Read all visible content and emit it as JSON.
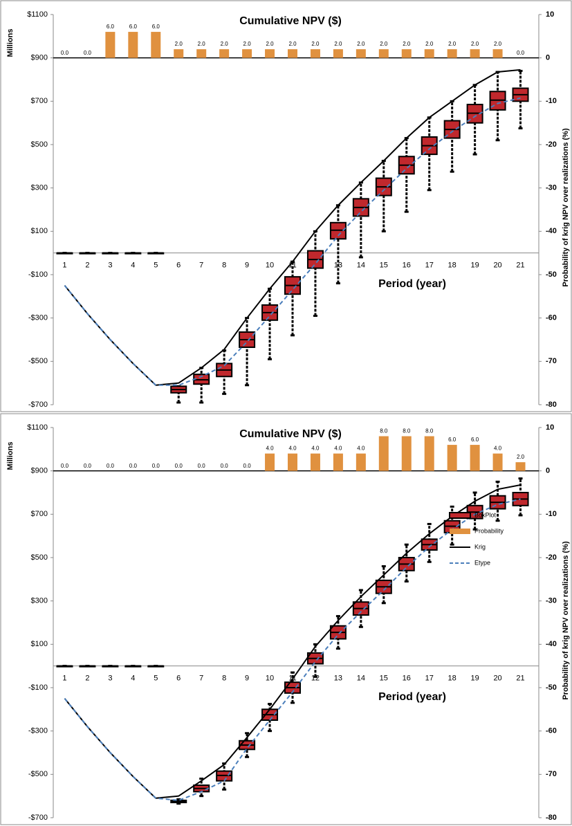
{
  "chart_data": [
    {
      "type": "boxplot",
      "title": "Cumulative NPV ($)",
      "x_label": "Period (year)",
      "y_label": "Millions",
      "y2_label": "Probability  of krig NPV over realizations  (%)",
      "categories": [
        "1",
        "2",
        "3",
        "4",
        "5",
        "6",
        "7",
        "8",
        "9",
        "10",
        "11",
        "12",
        "13",
        "14",
        "15",
        "16",
        "17",
        "18",
        "19",
        "20",
        "21"
      ],
      "ylim": [
        -700,
        1100
      ],
      "yticks": [
        {
          "value": 1100,
          "label": "$1100"
        },
        {
          "value": 900,
          "label": "$900"
        },
        {
          "value": 700,
          "label": "$700"
        },
        {
          "value": 500,
          "label": "$500"
        },
        {
          "value": 300,
          "label": "$300"
        },
        {
          "value": 100,
          "label": "$100"
        },
        {
          "value": -100,
          "label": "-$100"
        },
        {
          "value": -300,
          "label": "-$300"
        },
        {
          "value": -500,
          "label": "-$500"
        },
        {
          "value": -700,
          "label": "-$700"
        }
      ],
      "y2lim": [
        -80,
        10
      ],
      "y2ticks": [
        10,
        0,
        -10,
        -20,
        -30,
        -40,
        -50,
        -60,
        -70,
        -80
      ],
      "series": [
        {
          "type": "boxplot",
          "color": "#c0282d",
          "min": [
            0,
            0,
            0,
            0,
            0,
            -690,
            -690,
            -650,
            -610,
            -490,
            -380,
            -290,
            -140,
            -20,
            100,
            190,
            290,
            375,
            455,
            520,
            575
          ],
          "q1": [
            0,
            0,
            0,
            0,
            0,
            -645,
            -605,
            -570,
            -435,
            -310,
            -190,
            -70,
            65,
            170,
            265,
            365,
            455,
            530,
            600,
            660,
            700
          ],
          "median": [
            0,
            0,
            0,
            0,
            0,
            -630,
            -585,
            -540,
            -400,
            -275,
            -150,
            -30,
            105,
            210,
            305,
            405,
            495,
            570,
            645,
            705,
            730
          ],
          "q3": [
            0,
            0,
            0,
            0,
            0,
            -615,
            -560,
            -510,
            -365,
            -240,
            -110,
            10,
            140,
            250,
            345,
            445,
            535,
            610,
            685,
            745,
            760
          ],
          "max": [
            0,
            0,
            0,
            0,
            0,
            -615,
            -530,
            -450,
            -300,
            -165,
            -40,
            100,
            220,
            325,
            425,
            530,
            625,
            700,
            775,
            835,
            840
          ]
        },
        {
          "type": "bar",
          "axis": "y2",
          "color": "#e0913f",
          "values": [
            0,
            0,
            6,
            6,
            6,
            2,
            2,
            2,
            2,
            2,
            2,
            2,
            2,
            2,
            2,
            2,
            2,
            2,
            2,
            2,
            0
          ],
          "value_labels": [
            "0.0",
            "0.0",
            "6.0",
            "6.0",
            "6.0",
            "2.0",
            "2.0",
            "2.0",
            "2.0",
            "2.0",
            "2.0",
            "2.0",
            "2.0",
            "2.0",
            "2.0",
            "2.0",
            "2.0",
            "2.0",
            "2.0",
            "2.0",
            "0.0"
          ]
        },
        {
          "type": "line",
          "color": "#000000",
          "values": [
            -150,
            -280,
            -400,
            -510,
            -610,
            -600,
            -530,
            -445,
            -300,
            -165,
            -40,
            100,
            220,
            325,
            425,
            530,
            625,
            700,
            775,
            835,
            845
          ]
        },
        {
          "type": "line",
          "color": "#4a7ebb",
          "dashed": true,
          "values": [
            -150,
            -280,
            -400,
            -510,
            -610,
            -610,
            -570,
            -520,
            -410,
            -290,
            -170,
            -50,
            80,
            190,
            290,
            390,
            480,
            560,
            630,
            690,
            715
          ]
        }
      ]
    },
    {
      "type": "boxplot",
      "title": "Cumulative NPV ($)",
      "x_label": "Period (year)",
      "y_label": "Millions",
      "y2_label": "Probability  of krig NPV over realizations  (%)",
      "categories": [
        "1",
        "2",
        "3",
        "4",
        "5",
        "6",
        "7",
        "8",
        "9",
        "10",
        "11",
        "12",
        "13",
        "14",
        "15",
        "16",
        "17",
        "18",
        "19",
        "20",
        "21"
      ],
      "ylim": [
        -700,
        1100
      ],
      "yticks": [
        {
          "value": 1100,
          "label": "$1100"
        },
        {
          "value": 900,
          "label": "$900"
        },
        {
          "value": 700,
          "label": "$700"
        },
        {
          "value": 500,
          "label": "$500"
        },
        {
          "value": 300,
          "label": "$300"
        },
        {
          "value": 100,
          "label": "$100"
        },
        {
          "value": -100,
          "label": "-$100"
        },
        {
          "value": -300,
          "label": "-$300"
        },
        {
          "value": -500,
          "label": "-$500"
        },
        {
          "value": -700,
          "label": "-$700"
        }
      ],
      "y2lim": [
        -80,
        10
      ],
      "y2ticks": [
        10,
        0,
        -10,
        -20,
        -30,
        -40,
        -50,
        -60,
        -70,
        -80
      ],
      "legend": "right",
      "series": [
        {
          "type": "boxplot",
          "name": "BoxPlot",
          "color": "#c0282d",
          "min": [
            0,
            0,
            0,
            0,
            0,
            -635,
            -600,
            -570,
            -420,
            -300,
            -170,
            -50,
            80,
            180,
            290,
            390,
            480,
            560,
            630,
            670,
            695
          ],
          "q1": [
            0,
            0,
            0,
            0,
            0,
            -630,
            -580,
            -530,
            -385,
            -250,
            -125,
            10,
            125,
            235,
            335,
            440,
            535,
            615,
            680,
            725,
            740
          ],
          "median": [
            0,
            0,
            0,
            0,
            0,
            -625,
            -565,
            -505,
            -365,
            -225,
            -100,
            35,
            155,
            265,
            365,
            470,
            560,
            645,
            710,
            755,
            770
          ],
          "q3": [
            0,
            0,
            0,
            0,
            0,
            -620,
            -550,
            -485,
            -345,
            -200,
            -75,
            60,
            185,
            295,
            395,
            500,
            585,
            670,
            740,
            785,
            800
          ],
          "max": [
            0,
            0,
            0,
            0,
            0,
            -615,
            -520,
            -450,
            -310,
            -175,
            -30,
            100,
            230,
            350,
            460,
            560,
            655,
            735,
            800,
            850,
            865
          ]
        },
        {
          "type": "bar",
          "name": "Probability",
          "axis": "y2",
          "color": "#e0913f",
          "values": [
            0,
            0,
            0,
            0,
            0,
            0,
            0,
            0,
            0,
            4,
            4,
            4,
            4,
            4,
            8,
            8,
            8,
            6,
            6,
            4,
            2
          ],
          "value_labels": [
            "0.0",
            "0.0",
            "0.0",
            "0.0",
            "0.0",
            "0.0",
            "0.0",
            "0.0",
            "0.0",
            "4.0",
            "4.0",
            "4.0",
            "4.0",
            "4.0",
            "8.0",
            "8.0",
            "8.0",
            "6.0",
            "6.0",
            "4.0",
            "2.0"
          ]
        },
        {
          "type": "line",
          "name": "Krig",
          "color": "#000000",
          "values": [
            -150,
            -280,
            -400,
            -510,
            -610,
            -600,
            -530,
            -455,
            -330,
            -200,
            -60,
            90,
            210,
            320,
            420,
            520,
            610,
            690,
            760,
            815,
            835
          ]
        },
        {
          "type": "line",
          "name": "Etype",
          "color": "#4a7ebb",
          "dashed": true,
          "values": [
            -150,
            -280,
            -400,
            -510,
            -610,
            -620,
            -580,
            -530,
            -380,
            -250,
            -120,
            20,
            145,
            250,
            350,
            455,
            550,
            630,
            700,
            745,
            770
          ]
        }
      ]
    }
  ]
}
